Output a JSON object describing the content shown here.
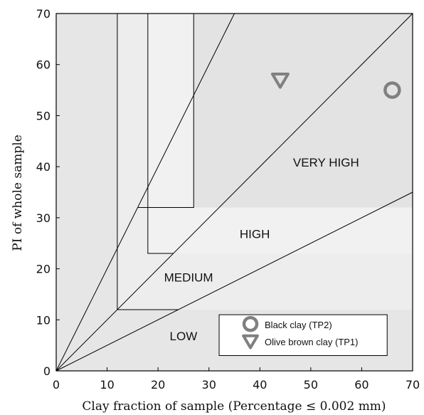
{
  "chart_data": {
    "type": "scatter",
    "xlabel": "Clay fraction of sample (Percentage ≤ 0.002 mm)",
    "ylabel": "PI of whole sample",
    "xlim": [
      0,
      70
    ],
    "ylim": [
      0,
      70
    ],
    "x_ticks": [
      "0",
      "10",
      "20",
      "30",
      "40",
      "50",
      "60",
      "70"
    ],
    "y_ticks": [
      "0",
      "10",
      "20",
      "30",
      "40",
      "50",
      "60",
      "70"
    ],
    "grid": false,
    "legend_position": "bottom-right",
    "regions": [
      {
        "label": "LOW",
        "x": 25,
        "y": 6,
        "bound_line_slope": 0.5,
        "corner": [
          12,
          12
        ]
      },
      {
        "label": "MEDIUM",
        "x": 26,
        "y": 17.5,
        "bound_line_slope": 1.0,
        "corner": [
          18,
          23
        ]
      },
      {
        "label": "HIGH",
        "x": 39,
        "y": 26,
        "bound_line_slope": 2.0,
        "corner": [
          27,
          32
        ]
      },
      {
        "label": "VERY HIGH",
        "x": 53,
        "y": 40
      }
    ],
    "boundary_lines": [
      {
        "from": [
          0,
          0
        ],
        "to": [
          70,
          35
        ]
      },
      {
        "from": [
          0,
          0
        ],
        "to": [
          70,
          70
        ]
      },
      {
        "from": [
          0,
          0
        ],
        "to": [
          35,
          70
        ]
      }
    ],
    "series": [
      {
        "name": "Black clay (TP2)",
        "marker": "circle",
        "color": "#808080",
        "points": [
          {
            "x": 66,
            "y": 55
          }
        ]
      },
      {
        "name": "Olive brown clay (TP1)",
        "marker": "triangle-down",
        "color": "#808080",
        "points": [
          {
            "x": 44,
            "y": 57
          }
        ]
      }
    ]
  }
}
